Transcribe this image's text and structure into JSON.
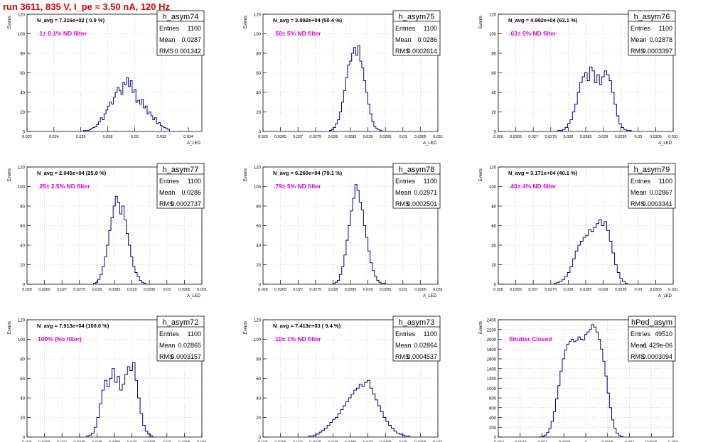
{
  "title": "run 3611,   835 V, I_pe ≈ 3.50 nA, 120 Hz",
  "colors": {
    "title": "#e00000",
    "hist": "#00008b",
    "annotation": "#e000e0",
    "grid": "#bbbbbb",
    "text": "#000000"
  },
  "chart_data": [
    {
      "type": "histogram",
      "name": "h_asym74",
      "ylabel": "Events",
      "xlabel": "A_LED",
      "nav_text": "N_avg = 7.316e+02 ( 0.9 %)",
      "annotation": ".1± 0.1% ND filter",
      "stats": {
        "Entries": "1100",
        "Mean": "0.0287",
        "RMS": "0.001342"
      },
      "xlim": [
        0.022,
        0.035
      ],
      "ylim": [
        0,
        120
      ],
      "xticks": [
        "0.022",
        "0.024",
        "0.026",
        "0.028",
        "0.03",
        "0.032",
        "0.034"
      ],
      "yticks": [
        "0",
        "20",
        "40",
        "60",
        "80",
        "100",
        "120"
      ],
      "bin_edges": [
        0.0262,
        0.0326
      ],
      "counts": [
        1,
        1,
        1,
        2,
        3,
        4,
        5,
        7,
        10,
        14,
        12,
        18,
        22,
        26,
        30,
        28,
        35,
        40,
        45,
        42,
        38,
        50,
        48,
        55,
        46,
        52,
        40,
        43,
        30,
        32,
        28,
        33,
        24,
        26,
        18,
        20,
        16,
        12,
        14,
        8,
        9,
        6,
        5,
        4,
        3,
        2
      ]
    },
    {
      "type": "histogram",
      "name": "h_asym75",
      "ylabel": "Events",
      "xlabel": "A_LED",
      "nav_text": "N_avg = 3.992e+04 (50.4 %)",
      "annotation": ".50± 5% ND filter",
      "stats": {
        "Entries": "1100",
        "Mean": "0.0286",
        "RMS": "0.0002614"
      },
      "xlim": [
        0.026,
        0.031
      ],
      "ylim": [
        0,
        120
      ],
      "xticks": [
        "0.026",
        "0.0265",
        "0.027",
        "0.0275",
        "0.028",
        "0.0285",
        "0.029",
        "0.0295",
        "0.03",
        "0.0305",
        "0.031"
      ],
      "yticks": [
        "0",
        "20",
        "40",
        "60",
        "80",
        "100",
        "120"
      ],
      "bin_edges": [
        0.0279,
        0.0294
      ],
      "counts": [
        1,
        2,
        4,
        8,
        12,
        20,
        30,
        42,
        55,
        68,
        72,
        80,
        86,
        78,
        88,
        72,
        65,
        52,
        40,
        28,
        18,
        10,
        5,
        3,
        2,
        1
      ]
    },
    {
      "type": "histogram",
      "name": "h_asym76",
      "ylabel": "Events",
      "xlabel": "A_LED",
      "nav_text": "N_avg = 4.992e+04 (63.1 %)",
      "annotation": ".63± 5% ND filter",
      "stats": {
        "Entries": "1100",
        "Mean": "0.02878",
        "RMS": "0.0003397"
      },
      "xlim": [
        0.026,
        0.031
      ],
      "ylim": [
        0,
        120
      ],
      "xticks": [
        "0.026",
        "0.0265",
        "0.027",
        "0.0275",
        "0.028",
        "0.0285",
        "0.029",
        "0.0295",
        "0.03",
        "0.0305",
        "0.031"
      ],
      "yticks": [
        "0",
        "20",
        "40",
        "60",
        "80",
        "100",
        "120"
      ],
      "bin_edges": [
        0.0277,
        0.0298
      ],
      "counts": [
        1,
        1,
        2,
        4,
        8,
        12,
        20,
        28,
        40,
        50,
        56,
        60,
        52,
        66,
        62,
        50,
        58,
        48,
        56,
        62,
        58,
        52,
        40,
        28,
        16,
        8,
        4,
        2,
        1,
        1
      ]
    },
    {
      "type": "histogram",
      "name": "h_asym77",
      "ylabel": "Events",
      "xlabel": "A_LED",
      "nav_text": "N_avg = 2.045e+04 (25.8 %)",
      "annotation": ".25± 2.5% ND filter",
      "stats": {
        "Entries": "1100",
        "Mean": "0.0286",
        "RMS": "0.0002737"
      },
      "xlim": [
        0.026,
        0.031
      ],
      "ylim": [
        0,
        120
      ],
      "xticks": [
        "0.026",
        "0.0265",
        "0.027",
        "0.0275",
        "0.028",
        "0.0285",
        "0.029",
        "0.0295",
        "0.03",
        "0.0305",
        "0.031"
      ],
      "yticks": [
        "0",
        "20",
        "40",
        "60",
        "80",
        "100",
        "120"
      ],
      "bin_edges": [
        0.0279,
        0.0294
      ],
      "counts": [
        1,
        2,
        5,
        10,
        18,
        28,
        40,
        55,
        68,
        80,
        90,
        84,
        72,
        80,
        66,
        52,
        40,
        28,
        18,
        12,
        8,
        4,
        2,
        1
      ]
    },
    {
      "type": "histogram",
      "name": "h_asym78",
      "ylabel": "Events",
      "xlabel": "A_LED",
      "nav_text": "N_avg = 6.260e+04 (79.1 %)",
      "annotation": ".79± 5% ND filter",
      "stats": {
        "Entries": "1100",
        "Mean": "0.02871",
        "RMS": "0.0002501"
      },
      "xlim": [
        0.026,
        0.031
      ],
      "ylim": [
        0,
        120
      ],
      "xticks": [
        "0.026",
        "0.0265",
        "0.027",
        "0.0275",
        "0.028",
        "0.0285",
        "0.029",
        "0.0295",
        "0.03",
        "0.0305",
        "0.031"
      ],
      "yticks": [
        "0",
        "20",
        "40",
        "60",
        "80",
        "100",
        "120"
      ],
      "bin_edges": [
        0.028,
        0.0295
      ],
      "counts": [
        1,
        2,
        4,
        10,
        18,
        30,
        45,
        60,
        75,
        88,
        102,
        96,
        84,
        76,
        60,
        48,
        34,
        22,
        14,
        8,
        4,
        2,
        1,
        1
      ]
    },
    {
      "type": "histogram",
      "name": "h_asym79",
      "ylabel": "Events",
      "xlabel": "A_LED",
      "nav_text": "N_avg = 3.171e+04 (40.1 %)",
      "annotation": ".40± 4% ND filter",
      "stats": {
        "Entries": "1100",
        "Mean": "0.02867",
        "RMS": "0.0003341"
      },
      "xlim": [
        0.026,
        0.031
      ],
      "ylim": [
        0,
        120
      ],
      "xticks": [
        "0.026",
        "0.0265",
        "0.027",
        "0.0275",
        "0.028",
        "0.0285",
        "0.029",
        "0.0295",
        "0.03",
        "0.0305",
        "0.031"
      ],
      "yticks": [
        "0",
        "20",
        "40",
        "60",
        "80",
        "100",
        "120"
      ],
      "bin_edges": [
        0.0276,
        0.0297
      ],
      "counts": [
        1,
        2,
        3,
        5,
        8,
        12,
        18,
        26,
        34,
        40,
        44,
        48,
        50,
        56,
        54,
        58,
        62,
        66,
        60,
        64,
        55,
        44,
        32,
        20,
        12,
        6,
        3,
        1
      ]
    },
    {
      "type": "histogram",
      "name": "h_asym72",
      "ylabel": "Events",
      "xlabel": "A_LED",
      "nav_text": "N_avg = 7.913e+04 (100.0 %)",
      "annotation": "100% (No filter)",
      "stats": {
        "Entries": "1100",
        "Mean": "0.02865",
        "RMS": "0.0003157"
      },
      "xlim": [
        0.026,
        0.031
      ],
      "ylim": [
        0,
        120
      ],
      "xticks": [
        "0.026",
        "0.0265",
        "0.027",
        "0.0275",
        "0.028",
        "0.0285",
        "0.029",
        "0.0295",
        "0.03",
        "0.0305",
        "0.031"
      ],
      "yticks": [
        "0",
        "20",
        "40",
        "60",
        "80",
        "100",
        "120"
      ],
      "bin_edges": [
        0.0277,
        0.0296
      ],
      "counts": [
        1,
        2,
        4,
        10,
        20,
        34,
        48,
        58,
        52,
        60,
        70,
        56,
        62,
        48,
        54,
        64,
        72,
        68,
        76,
        58,
        40,
        24,
        12,
        6,
        3,
        1
      ]
    },
    {
      "type": "histogram",
      "name": "h_asym73",
      "ylabel": "Events",
      "xlabel": "A_LED",
      "nav_text": "N_avg = 7.413e+03 ( 9.4 %)",
      "annotation": ".10± 1% ND filter",
      "stats": {
        "Entries": "1100",
        "Mean": "0.02864",
        "RMS": "0.0004537"
      },
      "xlim": [
        0.026,
        0.031
      ],
      "ylim": [
        0,
        120
      ],
      "xticks": [
        "0.026",
        "0.0265",
        "0.027",
        "0.0275",
        "0.028",
        "0.0285",
        "0.029",
        "0.0295",
        "0.03",
        "0.0305",
        "0.031"
      ],
      "yticks": [
        "0",
        "20",
        "40",
        "60",
        "80",
        "100",
        "120"
      ],
      "bin_edges": [
        0.0273,
        0.0302
      ],
      "counts": [
        1,
        1,
        2,
        3,
        5,
        7,
        9,
        12,
        15,
        18,
        20,
        24,
        28,
        32,
        36,
        40,
        44,
        48,
        50,
        54,
        52,
        56,
        58,
        50,
        44,
        38,
        32,
        26,
        20,
        16,
        12,
        9,
        6,
        4,
        3,
        2,
        1,
        1
      ]
    },
    {
      "type": "histogram",
      "name": "hPed_asym",
      "ylabel": "Events",
      "xlabel": "A_LED",
      "nav_text": "",
      "annotation": "Shutter Closed",
      "stats": {
        "Entries": "49510",
        "Mean": "-1.429e-06",
        "RMS": "0.0003094"
      },
      "xlim": [
        -0.002,
        0.002
      ],
      "ylim": [
        0,
        2400
      ],
      "xticks": [
        "-0.002",
        "-0.0015",
        "-0.001",
        "-0.0005",
        "0",
        "0.0005",
        "0.001",
        "0.0015",
        "0.002"
      ],
      "yticks": [
        "0",
        "200",
        "400",
        "600",
        "800",
        "1000",
        "1200",
        "1400",
        "1600",
        "1800",
        "2000",
        "2200",
        "2400"
      ],
      "bin_edges": [
        -0.00105,
        0.00085
      ],
      "counts": [
        5,
        15,
        40,
        90,
        180,
        320,
        520,
        780,
        1050,
        1350,
        1600,
        1780,
        1900,
        1960,
        2000,
        1950,
        1980,
        2050,
        2000,
        1990,
        2100,
        2150,
        2200,
        2300,
        2250,
        2150,
        2000,
        1800,
        1550,
        1250,
        900,
        600,
        350,
        180,
        80,
        30,
        10
      ]
    }
  ]
}
